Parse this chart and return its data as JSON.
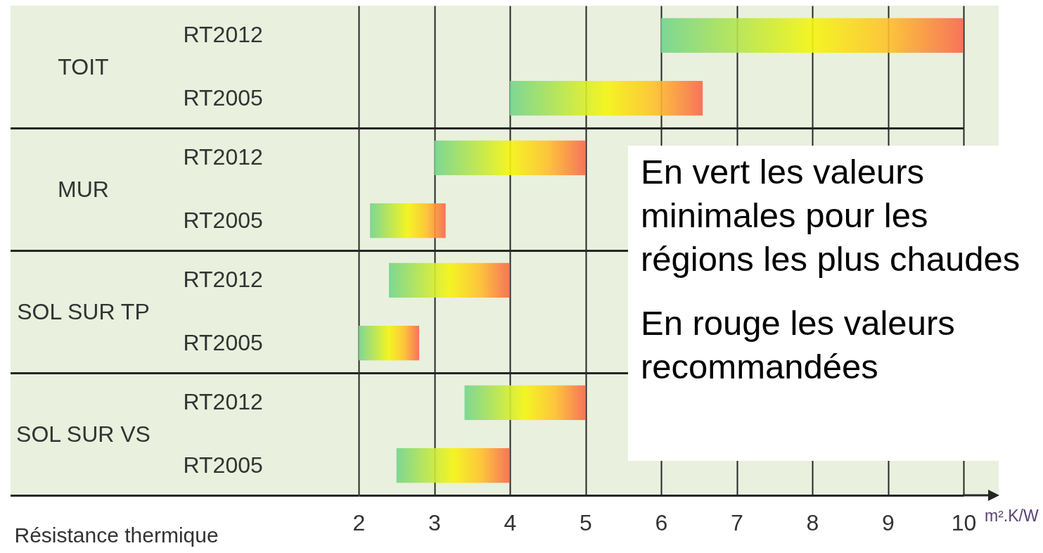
{
  "chart_data": [
    {
      "type": "bar",
      "orientation": "horizontal",
      "ylabel": "TOIT",
      "categories": [
        "RT2012",
        "RT2005"
      ],
      "base": [
        6,
        4
      ],
      "values": [
        4,
        2.55
      ],
      "color": "#f5f50f",
      "xlim": [
        2,
        10
      ],
      "xticks": [
        2,
        3,
        4,
        5,
        6,
        7,
        8,
        9,
        10
      ],
      "grid": "x",
      "tick_labels": "y"
    },
    {
      "type": "bar",
      "orientation": "horizontal",
      "ylabel": "MUR",
      "categories": [
        "RT2012",
        "RT2005"
      ],
      "base": [
        3,
        2.15
      ],
      "values": [
        2,
        1
      ],
      "color": "#f5f50f",
      "xlim": [
        2,
        10
      ],
      "xticks": [
        2,
        3,
        4,
        5,
        6,
        7,
        8,
        9,
        10
      ],
      "grid": "x",
      "tick_labels": "y",
      "annotations": [
        "En vert les valeurs minimales pour les régions les plus chaudes",
        "En rouge les valeurs recommandées"
      ]
    },
    {
      "type": "bar",
      "orientation": "horizontal",
      "ylabel": "SOL SUR TP",
      "categories": [
        "RT2012",
        "RT2005"
      ],
      "base": [
        2.4,
        2
      ],
      "values": [
        1.6,
        0.8
      ],
      "color": "#f5f50f",
      "xlim": [
        2,
        10
      ],
      "xticks": [
        2,
        3,
        4,
        5,
        6,
        7,
        8,
        9,
        10
      ],
      "grid": "x",
      "tick_labels": "y"
    },
    {
      "type": "bar",
      "orientation": "horizontal",
      "ylabel": "SOL SUR VS",
      "xlabel": "Résistance thermique",
      "categories": [
        "RT2012",
        "RT2005"
      ],
      "base": [
        3.4,
        2.5
      ],
      "values": [
        1.6,
        1.5
      ],
      "color": "#f5f50f",
      "xlim": [
        2,
        10
      ],
      "xticks": [
        2,
        3,
        4,
        5,
        6,
        7,
        8,
        9,
        10
      ],
      "grid": "x",
      "annotations": [
        "m².K/W"
      ]
    }
  ]
}
